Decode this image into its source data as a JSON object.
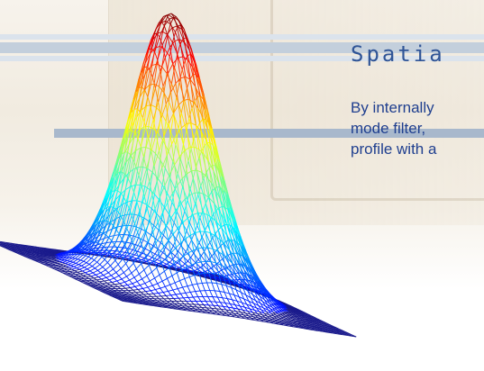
{
  "title": "Spatia",
  "body_lines": [
    "By internally",
    "mode filter,",
    "profile with a"
  ],
  "surface": {
    "shape": "gaussian",
    "colormap": "jet",
    "grid_lines": 48,
    "base_color": "#1a1a8c"
  }
}
